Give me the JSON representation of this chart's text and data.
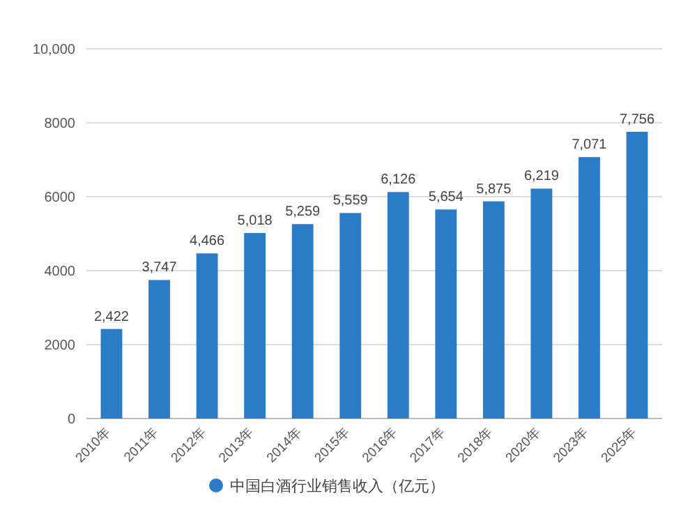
{
  "chart_data": {
    "type": "bar",
    "categories": [
      "2010年",
      "2011年",
      "2012年",
      "2013年",
      "2014年",
      "2015年",
      "2016年",
      "2017年",
      "2018年",
      "2020年",
      "2023年",
      "2025年"
    ],
    "series": [
      {
        "name": "中国白酒行业销售收入（亿元）",
        "color": "#2b7cc6",
        "values": [
          2422,
          3747,
          4466,
          5018,
          5259,
          5559,
          6126,
          5654,
          5875,
          6219,
          7071,
          7756
        ],
        "value_labels": [
          "2,422",
          "3,747",
          "4,466",
          "5,018",
          "5,259",
          "5,559",
          "6,126",
          "5,654",
          "5,875",
          "6,219",
          "7,071",
          "7,756"
        ]
      }
    ],
    "ylim": [
      0,
      10000
    ],
    "yticks": [
      0,
      2000,
      4000,
      6000,
      8000,
      {
        "value": 10000,
        "label": "10,000"
      }
    ],
    "grid": "y",
    "legend": "bottom"
  }
}
